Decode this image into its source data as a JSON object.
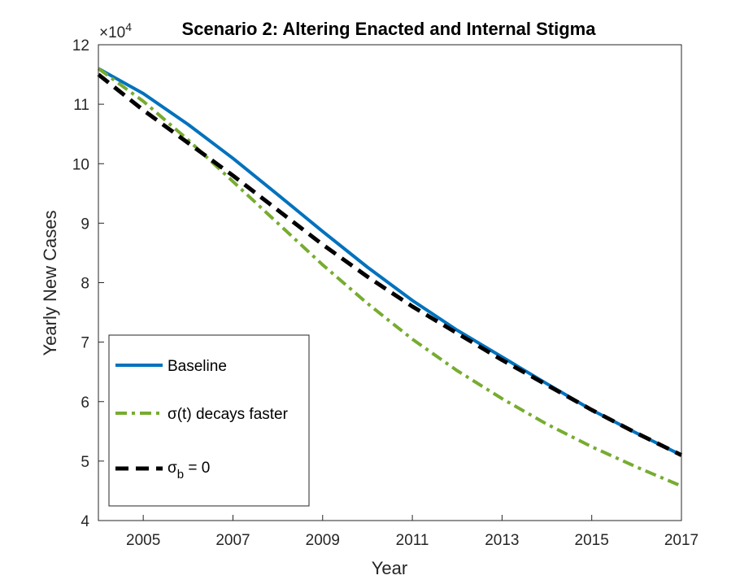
{
  "chart_data": {
    "type": "line",
    "title": "Scenario 2: Altering Enacted and Internal Stigma",
    "xlabel": "Year",
    "ylabel": "Yearly New Cases",
    "y_exponent_label": "×10",
    "y_exponent": "4",
    "xlim": [
      2004,
      2017
    ],
    "ylim": [
      4,
      12
    ],
    "x_ticks": [
      2005,
      2007,
      2009,
      2011,
      2013,
      2015,
      2017
    ],
    "y_ticks": [
      4,
      5,
      6,
      7,
      8,
      9,
      10,
      11,
      12
    ],
    "grid": false,
    "legend_position": "bottom-left",
    "x": [
      2004,
      2005,
      2006,
      2007,
      2008,
      2009,
      2010,
      2011,
      2012,
      2013,
      2014,
      2015,
      2016,
      2017
    ],
    "series": [
      {
        "name": "Baseline",
        "color": "#0072BD",
        "style": "solid",
        "values": [
          11.6,
          11.18,
          10.66,
          10.09,
          9.48,
          8.86,
          8.26,
          7.7,
          7.2,
          6.75,
          6.3,
          5.86,
          5.47,
          5.1
        ]
      },
      {
        "name": "σ(t) decays faster",
        "name_main": "σ(t) decays faster",
        "color": "#77AC30",
        "style": "dashdot",
        "values": [
          11.6,
          11.05,
          10.4,
          9.7,
          9.0,
          8.3,
          7.65,
          7.05,
          6.52,
          6.05,
          5.62,
          5.24,
          4.9,
          4.58
        ]
      },
      {
        "name": "σb = 0",
        "name_main": "σ",
        "name_sub": "b",
        "name_suffix": " = 0",
        "color": "#000000",
        "style": "dashed",
        "values": [
          11.5,
          10.9,
          10.35,
          9.8,
          9.22,
          8.64,
          8.1,
          7.6,
          7.15,
          6.7,
          6.28,
          5.86,
          5.47,
          5.1
        ]
      }
    ]
  }
}
